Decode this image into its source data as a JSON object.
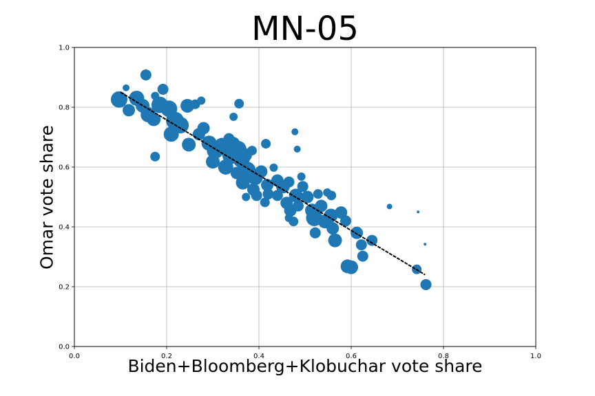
{
  "chart_data": {
    "type": "scatter",
    "title": "MN-05",
    "xlabel": "Biden+Bloomberg+Klobuchar vote share",
    "ylabel": "Omar vote share",
    "xlim": [
      0.0,
      1.0
    ],
    "ylim": [
      0.0,
      1.0
    ],
    "x_ticks": [
      "0.0",
      "0.2",
      "0.4",
      "0.6",
      "0.8",
      "1.0"
    ],
    "y_ticks": [
      "0.0",
      "0.2",
      "0.4",
      "0.6",
      "0.8",
      "1.0"
    ],
    "grid": true,
    "colors": {
      "points": "#1f77b4",
      "trend": "#000000"
    },
    "trend_line": {
      "x": [
        0.1,
        0.76
      ],
      "y": [
        0.85,
        0.24
      ],
      "style": "dashed"
    },
    "points": [
      {
        "x": 0.155,
        "y": 0.908,
        "size": 8
      },
      {
        "x": 0.192,
        "y": 0.86,
        "size": 8
      },
      {
        "x": 0.112,
        "y": 0.865,
        "size": 5
      },
      {
        "x": 0.097,
        "y": 0.826,
        "size": 12
      },
      {
        "x": 0.135,
        "y": 0.83,
        "size": 11
      },
      {
        "x": 0.118,
        "y": 0.79,
        "size": 9
      },
      {
        "x": 0.148,
        "y": 0.805,
        "size": 10
      },
      {
        "x": 0.16,
        "y": 0.775,
        "size": 11
      },
      {
        "x": 0.172,
        "y": 0.76,
        "size": 10
      },
      {
        "x": 0.175,
        "y": 0.838,
        "size": 6
      },
      {
        "x": 0.185,
        "y": 0.808,
        "size": 12
      },
      {
        "x": 0.205,
        "y": 0.795,
        "size": 12
      },
      {
        "x": 0.218,
        "y": 0.755,
        "size": 13
      },
      {
        "x": 0.23,
        "y": 0.74,
        "size": 12
      },
      {
        "x": 0.21,
        "y": 0.71,
        "size": 11
      },
      {
        "x": 0.245,
        "y": 0.805,
        "size": 10
      },
      {
        "x": 0.262,
        "y": 0.81,
        "size": 7
      },
      {
        "x": 0.275,
        "y": 0.822,
        "size": 6
      },
      {
        "x": 0.175,
        "y": 0.635,
        "size": 7
      },
      {
        "x": 0.248,
        "y": 0.675,
        "size": 10
      },
      {
        "x": 0.27,
        "y": 0.71,
        "size": 9
      },
      {
        "x": 0.28,
        "y": 0.73,
        "size": 9
      },
      {
        "x": 0.292,
        "y": 0.68,
        "size": 11
      },
      {
        "x": 0.305,
        "y": 0.655,
        "size": 12
      },
      {
        "x": 0.3,
        "y": 0.618,
        "size": 10
      },
      {
        "x": 0.32,
        "y": 0.67,
        "size": 12
      },
      {
        "x": 0.335,
        "y": 0.695,
        "size": 8
      },
      {
        "x": 0.345,
        "y": 0.68,
        "size": 9
      },
      {
        "x": 0.34,
        "y": 0.64,
        "size": 13
      },
      {
        "x": 0.355,
        "y": 0.66,
        "size": 12
      },
      {
        "x": 0.328,
        "y": 0.6,
        "size": 11
      },
      {
        "x": 0.362,
        "y": 0.625,
        "size": 12
      },
      {
        "x": 0.37,
        "y": 0.64,
        "size": 10
      },
      {
        "x": 0.385,
        "y": 0.655,
        "size": 7
      },
      {
        "x": 0.345,
        "y": 0.768,
        "size": 6
      },
      {
        "x": 0.357,
        "y": 0.812,
        "size": 7
      },
      {
        "x": 0.352,
        "y": 0.58,
        "size": 9
      },
      {
        "x": 0.365,
        "y": 0.548,
        "size": 10
      },
      {
        "x": 0.375,
        "y": 0.59,
        "size": 12
      },
      {
        "x": 0.392,
        "y": 0.565,
        "size": 11
      },
      {
        "x": 0.405,
        "y": 0.585,
        "size": 9
      },
      {
        "x": 0.372,
        "y": 0.5,
        "size": 6
      },
      {
        "x": 0.388,
        "y": 0.525,
        "size": 9
      },
      {
        "x": 0.395,
        "y": 0.505,
        "size": 8
      },
      {
        "x": 0.418,
        "y": 0.54,
        "size": 9
      },
      {
        "x": 0.415,
        "y": 0.678,
        "size": 7
      },
      {
        "x": 0.432,
        "y": 0.598,
        "size": 6
      },
      {
        "x": 0.42,
        "y": 0.51,
        "size": 8
      },
      {
        "x": 0.413,
        "y": 0.482,
        "size": 7
      },
      {
        "x": 0.44,
        "y": 0.555,
        "size": 9
      },
      {
        "x": 0.452,
        "y": 0.535,
        "size": 10
      },
      {
        "x": 0.44,
        "y": 0.505,
        "size": 8
      },
      {
        "x": 0.465,
        "y": 0.55,
        "size": 8
      },
      {
        "x": 0.46,
        "y": 0.48,
        "size": 9
      },
      {
        "x": 0.468,
        "y": 0.455,
        "size": 9
      },
      {
        "x": 0.48,
        "y": 0.505,
        "size": 10
      },
      {
        "x": 0.478,
        "y": 0.718,
        "size": 5
      },
      {
        "x": 0.483,
        "y": 0.66,
        "size": 5
      },
      {
        "x": 0.492,
        "y": 0.568,
        "size": 6
      },
      {
        "x": 0.495,
        "y": 0.535,
        "size": 8
      },
      {
        "x": 0.485,
        "y": 0.47,
        "size": 8
      },
      {
        "x": 0.465,
        "y": 0.43,
        "size": 6
      },
      {
        "x": 0.475,
        "y": 0.418,
        "size": 7
      },
      {
        "x": 0.505,
        "y": 0.5,
        "size": 9
      },
      {
        "x": 0.515,
        "y": 0.455,
        "size": 10
      },
      {
        "x": 0.52,
        "y": 0.43,
        "size": 12
      },
      {
        "x": 0.528,
        "y": 0.51,
        "size": 7
      },
      {
        "x": 0.535,
        "y": 0.47,
        "size": 9
      },
      {
        "x": 0.522,
        "y": 0.38,
        "size": 8
      },
      {
        "x": 0.543,
        "y": 0.418,
        "size": 10
      },
      {
        "x": 0.548,
        "y": 0.515,
        "size": 6
      },
      {
        "x": 0.557,
        "y": 0.505,
        "size": 7
      },
      {
        "x": 0.556,
        "y": 0.438,
        "size": 10
      },
      {
        "x": 0.56,
        "y": 0.395,
        "size": 9
      },
      {
        "x": 0.565,
        "y": 0.355,
        "size": 10
      },
      {
        "x": 0.578,
        "y": 0.448,
        "size": 9
      },
      {
        "x": 0.588,
        "y": 0.42,
        "size": 8
      },
      {
        "x": 0.592,
        "y": 0.268,
        "size": 10
      },
      {
        "x": 0.6,
        "y": 0.265,
        "size": 10
      },
      {
        "x": 0.612,
        "y": 0.38,
        "size": 9
      },
      {
        "x": 0.622,
        "y": 0.34,
        "size": 8
      },
      {
        "x": 0.625,
        "y": 0.302,
        "size": 8
      },
      {
        "x": 0.645,
        "y": 0.355,
        "size": 8
      },
      {
        "x": 0.683,
        "y": 0.468,
        "size": 4
      },
      {
        "x": 0.742,
        "y": 0.258,
        "size": 7
      },
      {
        "x": 0.745,
        "y": 0.45,
        "size": 2
      },
      {
        "x": 0.76,
        "y": 0.342,
        "size": 2
      },
      {
        "x": 0.762,
        "y": 0.207,
        "size": 8
      }
    ]
  }
}
